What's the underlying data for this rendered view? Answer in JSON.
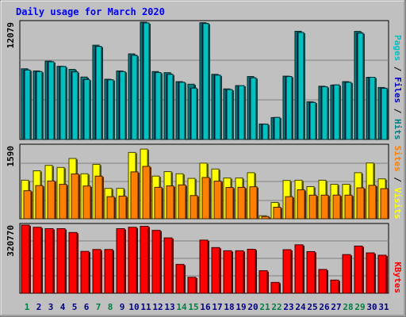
{
  "chart_data": [
    {
      "type": "bar",
      "title": "Daily usage for March 2020",
      "y_max_label": "12079",
      "ylim": [
        0,
        12079
      ],
      "ylabel_parts": [
        {
          "text": "Pages",
          "color": "#00c0c0"
        },
        {
          "text": " / ",
          "color": "#000000"
        },
        {
          "text": "Files",
          "color": "#0000c0"
        },
        {
          "text": " / ",
          "color": "#000000"
        },
        {
          "text": "Hits",
          "color": "#008080"
        }
      ],
      "categories": [
        "1",
        "2",
        "3",
        "4",
        "5",
        "6",
        "7",
        "8",
        "9",
        "10",
        "11",
        "12",
        "13",
        "14",
        "15",
        "16",
        "17",
        "18",
        "19",
        "20",
        "21",
        "22",
        "23",
        "24",
        "25",
        "26",
        "27",
        "28",
        "29",
        "30",
        "31"
      ],
      "series": [
        {
          "name": "Hits",
          "color": "#008080",
          "values": [
            7280,
            7053,
            8067,
            7534,
            7216,
            6430,
            9707,
            6202,
            7053,
            8814,
            12079,
            6994,
            6882,
            5955,
            5692,
            12026,
            6708,
            5208,
            5549,
            6482,
            1595,
            2252,
            6522,
            11143,
            3882,
            5483,
            5604,
            5955,
            11129,
            6404,
            5353
          ]
        },
        {
          "name": "Files",
          "color": "#0000c0",
          "values": [
            7149,
            6987,
            8001,
            7515,
            6961,
            6169,
            9582,
            6143,
            6987,
            8665,
            12000,
            6895,
            6706,
            5891,
            5287,
            11944,
            6620,
            5143,
            5549,
            6338,
            1576,
            2265,
            6480,
            11020,
            3816,
            5431,
            5614,
            5883,
            10954,
            6404,
            5274
          ]
        },
        {
          "name": "Pages",
          "color": "#00c0c0",
          "values": [
            7149,
            6987,
            8001,
            7515,
            6961,
            6169,
            9582,
            6143,
            6987,
            8665,
            12000,
            6895,
            6706,
            5891,
            5287,
            11944,
            6620,
            5143,
            5549,
            6338,
            1576,
            2265,
            6480,
            11020,
            3816,
            5431,
            5614,
            5883,
            10954,
            6404,
            5274
          ]
        }
      ]
    },
    {
      "type": "bar",
      "y_max_label": "1590",
      "ylim": [
        0,
        1590
      ],
      "ylabel_parts": [
        {
          "text": "Sites",
          "color": "#ff8000"
        },
        {
          "text": " / ",
          "color": "#000000"
        },
        {
          "text": "Visits",
          "color": "#ffff00"
        }
      ],
      "categories": [
        "1",
        "2",
        "3",
        "4",
        "5",
        "6",
        "7",
        "8",
        "9",
        "10",
        "11",
        "12",
        "13",
        "14",
        "15",
        "16",
        "17",
        "18",
        "19",
        "20",
        "21",
        "22",
        "23",
        "24",
        "25",
        "26",
        "27",
        "28",
        "29",
        "30",
        "31"
      ],
      "series": [
        {
          "name": "Visits",
          "color": "#ffff00",
          "values": [
            840,
            1045,
            1163,
            1118,
            1313,
            980,
            1186,
            662,
            662,
            1445,
            1519,
            930,
            1027,
            980,
            880,
            1212,
            1084,
            888,
            888,
            1004,
            65,
            355,
            835,
            840,
            700,
            840,
            752,
            752,
            1004,
            1216,
            869
          ]
        },
        {
          "name": "Sites",
          "color": "#ff8000",
          "values": [
            611,
            723,
            823,
            750,
            977,
            714,
            929,
            482,
            494,
            1022,
            1142,
            685,
            716,
            738,
            505,
            900,
            820,
            682,
            685,
            697,
            48,
            251,
            482,
            631,
            514,
            514,
            514,
            514,
            674,
            728,
            656
          ]
        }
      ]
    },
    {
      "type": "bar",
      "y_max_label": "320770",
      "ylim": [
        0,
        320770
      ],
      "ylabel_parts": [
        {
          "text": "KBytes",
          "color": "#ff0000"
        }
      ],
      "categories": [
        "1",
        "2",
        "3",
        "4",
        "5",
        "6",
        "7",
        "8",
        "9",
        "10",
        "11",
        "12",
        "13",
        "14",
        "15",
        "16",
        "17",
        "18",
        "19",
        "20",
        "21",
        "22",
        "23",
        "24",
        "25",
        "26",
        "27",
        "28",
        "29",
        "30",
        "31"
      ],
      "series": [
        {
          "name": "KBytes",
          "color": "#ff0000",
          "values": [
            320770,
            310510,
            303920,
            303920,
            285950,
            197000,
            205950,
            205950,
            303920,
            310510,
            315130,
            295890,
            260570,
            135720,
            75050,
            250000,
            215000,
            200000,
            200000,
            207000,
            106000,
            51000,
            205000,
            228000,
            196000,
            112000,
            62000,
            182000,
            222000,
            190000,
            179000
          ]
        }
      ]
    }
  ],
  "x_labels": [
    {
      "text": "1",
      "color": "#008040"
    },
    {
      "text": "2",
      "color": "#000080"
    },
    {
      "text": "3",
      "color": "#000080"
    },
    {
      "text": "4",
      "color": "#000080"
    },
    {
      "text": "5",
      "color": "#000080"
    },
    {
      "text": "6",
      "color": "#000080"
    },
    {
      "text": "7",
      "color": "#008040"
    },
    {
      "text": "8",
      "color": "#008040"
    },
    {
      "text": "9",
      "color": "#000080"
    },
    {
      "text": "10",
      "color": "#000080"
    },
    {
      "text": "11",
      "color": "#000080"
    },
    {
      "text": "12",
      "color": "#000080"
    },
    {
      "text": "13",
      "color": "#000080"
    },
    {
      "text": "14",
      "color": "#008040"
    },
    {
      "text": "15",
      "color": "#008040"
    },
    {
      "text": "16",
      "color": "#000080"
    },
    {
      "text": "17",
      "color": "#000080"
    },
    {
      "text": "18",
      "color": "#000080"
    },
    {
      "text": "19",
      "color": "#000080"
    },
    {
      "text": "20",
      "color": "#000080"
    },
    {
      "text": "21",
      "color": "#008040"
    },
    {
      "text": "22",
      "color": "#008040"
    },
    {
      "text": "23",
      "color": "#000080"
    },
    {
      "text": "24",
      "color": "#000080"
    },
    {
      "text": "25",
      "color": "#000080"
    },
    {
      "text": "26",
      "color": "#000080"
    },
    {
      "text": "27",
      "color": "#000080"
    },
    {
      "text": "28",
      "color": "#008040"
    },
    {
      "text": "29",
      "color": "#008040"
    },
    {
      "text": "30",
      "color": "#000080"
    },
    {
      "text": "31",
      "color": "#000080"
    }
  ],
  "colors": {
    "background": "#c0c0c0",
    "grid": "#808080",
    "title": "#0000ff",
    "axis_label": "#000000"
  }
}
